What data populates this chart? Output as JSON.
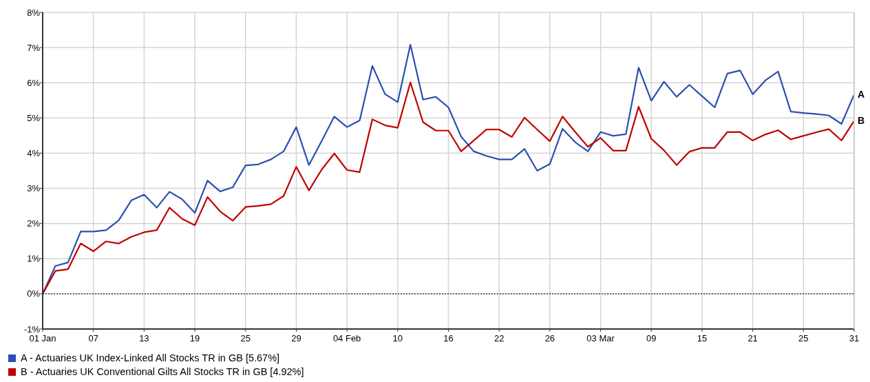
{
  "chart_data": {
    "type": "line",
    "categories": [
      "01 Jan",
      null,
      null,
      null,
      "07",
      null,
      null,
      null,
      "13",
      null,
      null,
      null,
      "19",
      null,
      null,
      null,
      "25",
      null,
      null,
      null,
      "29",
      null,
      null,
      null,
      "04 Feb",
      null,
      null,
      null,
      "10",
      null,
      null,
      null,
      "16",
      null,
      null,
      null,
      "22",
      null,
      null,
      null,
      "26",
      null,
      null,
      null,
      "03 Mar",
      null,
      null,
      null,
      "09",
      null,
      null,
      null,
      "15",
      null,
      null,
      null,
      "21",
      null,
      null,
      null,
      "25",
      null,
      null,
      null,
      "31"
    ],
    "series": [
      {
        "name": "A - Actuaries UK Index-Linked All Stocks TR in GB [5.67%]",
        "color": "#2a4fb0",
        "values": [
          0,
          0.79,
          0.89,
          1.77,
          1.77,
          1.81,
          2.09,
          2.66,
          2.82,
          2.45,
          2.9,
          2.69,
          2.3,
          3.22,
          2.91,
          3.03,
          3.65,
          3.68,
          3.82,
          4.05,
          4.74,
          3.66,
          4.34,
          5.04,
          4.74,
          4.93,
          6.48,
          5.68,
          5.45,
          7.08,
          5.52,
          5.6,
          5.3,
          4.47,
          4.05,
          3.92,
          3.82,
          3.82,
          4.12,
          3.5,
          3.69,
          4.69,
          4.31,
          4.05,
          4.6,
          4.49,
          4.54,
          6.43,
          5.49,
          6.03,
          5.6,
          5.94,
          5.62,
          5.3,
          6.26,
          6.35,
          5.67,
          6.07,
          6.32,
          5.18,
          5.14,
          5.11,
          5.07,
          4.83,
          5.67
        ]
      },
      {
        "name": "B - Actuaries UK Conventional Gilts All Stocks TR in GB [4.92%]",
        "color": "#c00000",
        "values": [
          0,
          0.65,
          0.7,
          1.43,
          1.21,
          1.49,
          1.43,
          1.62,
          1.75,
          1.81,
          2.45,
          2.13,
          1.95,
          2.75,
          2.34,
          2.08,
          2.47,
          2.5,
          2.55,
          2.78,
          3.61,
          2.94,
          3.53,
          3.99,
          3.52,
          3.46,
          4.96,
          4.79,
          4.72,
          6.01,
          4.88,
          4.64,
          4.64,
          4.05,
          4.36,
          4.67,
          4.67,
          4.46,
          5.01,
          4.67,
          4.34,
          5.04,
          4.6,
          4.18,
          4.43,
          4.07,
          4.07,
          5.32,
          4.41,
          4.08,
          3.66,
          4.04,
          4.15,
          4.15,
          4.6,
          4.6,
          4.36,
          4.53,
          4.65,
          4.39,
          4.49,
          4.59,
          4.68,
          4.36,
          4.92
        ]
      }
    ],
    "ylim": [
      -1,
      8
    ],
    "yticks": [
      {
        "value": -1,
        "label": "-1%"
      },
      {
        "value": 0,
        "label": "0%"
      },
      {
        "value": 1,
        "label": "1%"
      },
      {
        "value": 2,
        "label": "2%"
      },
      {
        "value": 3,
        "label": "3%"
      },
      {
        "value": 4,
        "label": "4%"
      },
      {
        "value": 5,
        "label": "5%"
      },
      {
        "value": 6,
        "label": "6%"
      },
      {
        "value": 7,
        "label": "7%"
      },
      {
        "value": 8,
        "label": "8%"
      }
    ],
    "ref_lines": [
      {
        "axis": "y",
        "value": 0,
        "color": "#000000",
        "line_style": "dotted"
      }
    ],
    "annotations": [
      {
        "text": "A",
        "x": "31",
        "y": 5.67
      },
      {
        "text": "B",
        "x": "31",
        "y": 4.92
      }
    ],
    "grid": true,
    "legend": "bottom left",
    "marker": "none",
    "line_style": "solid"
  }
}
